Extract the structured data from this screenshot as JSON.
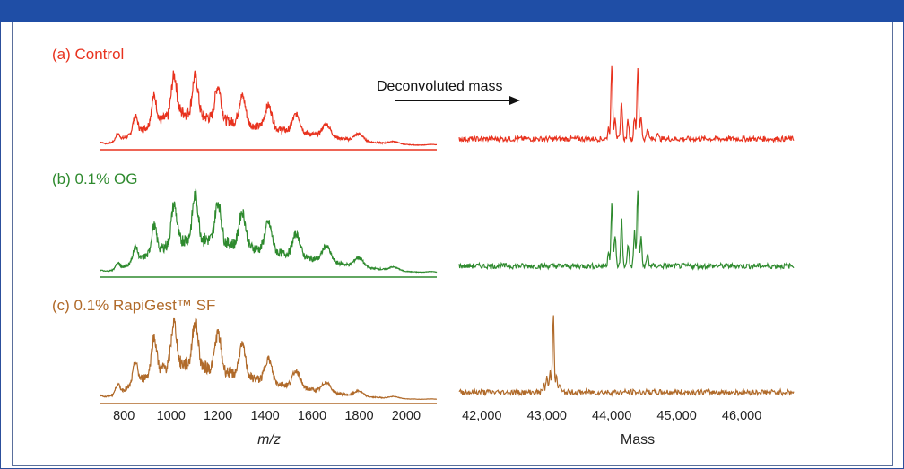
{
  "chart_data": {
    "type": "line",
    "annotation": "Deconvoluted mass",
    "left_axis": {
      "xlabel": "m/z",
      "xlim": [
        700,
        2130
      ],
      "ticks": [
        "800",
        "1000",
        "1200",
        "1400",
        "1600",
        "1800",
        "2000"
      ],
      "tick_values": [
        800,
        1000,
        1200,
        1400,
        1600,
        1800,
        2000
      ]
    },
    "right_axis": {
      "xlabel": "Mass",
      "xlim": [
        41650,
        46800
      ],
      "ticks": [
        "42,000",
        "43,000",
        "44,000",
        "45,000",
        "46,000"
      ],
      "tick_values": [
        42000,
        43000,
        44000,
        45000,
        46000
      ]
    },
    "panels": [
      {
        "label": "(a)  Control",
        "color": "#e8321e",
        "mz_envelope": {
          "x": [
            700,
            760,
            820,
            880,
            940,
            1000,
            1040,
            1080,
            1150,
            1250,
            1350,
            1450,
            1550,
            1650,
            1750,
            1850,
            1950,
            2050,
            2130
          ],
          "y": [
            0.05,
            0.12,
            0.3,
            0.5,
            0.7,
            0.9,
            1.0,
            0.95,
            0.85,
            0.72,
            0.6,
            0.5,
            0.4,
            0.3,
            0.2,
            0.12,
            0.06,
            0.03,
            0.02
          ]
        },
        "mass_peaks": {
          "x": [
            43950,
            44000,
            44050,
            44150,
            44250,
            44350,
            44400,
            44450,
            44550,
            44700
          ],
          "y": [
            0.15,
            1.0,
            0.3,
            0.5,
            0.25,
            0.3,
            0.95,
            0.3,
            0.15,
            0.1
          ]
        }
      },
      {
        "label": "(b)  0.1% OG",
        "color": "#2e8a2e",
        "mz_envelope": {
          "x": [
            700,
            760,
            820,
            880,
            940,
            1000,
            1050,
            1100,
            1150,
            1250,
            1350,
            1450,
            1550,
            1650,
            1750,
            1850,
            1950,
            2050,
            2130
          ],
          "y": [
            0.04,
            0.1,
            0.25,
            0.45,
            0.65,
            0.85,
            0.95,
            1.0,
            0.96,
            0.85,
            0.72,
            0.6,
            0.48,
            0.36,
            0.25,
            0.15,
            0.08,
            0.04,
            0.02
          ]
        },
        "mass_peaks": {
          "x": [
            43950,
            44000,
            44050,
            44150,
            44250,
            44350,
            44400,
            44450,
            44550
          ],
          "y": [
            0.2,
            0.8,
            0.4,
            0.6,
            0.3,
            0.45,
            1.0,
            0.35,
            0.15
          ]
        }
      },
      {
        "label": "(c)  0.1% RapiGest™  SF",
        "color": "#b06a2a",
        "mz_envelope": {
          "x": [
            700,
            760,
            820,
            880,
            940,
            1000,
            1050,
            1100,
            1150,
            1250,
            1350,
            1450,
            1550,
            1650,
            1750,
            1850,
            1950,
            2050,
            2130
          ],
          "y": [
            0.05,
            0.15,
            0.35,
            0.6,
            0.82,
            0.95,
            1.0,
            0.98,
            0.9,
            0.75,
            0.6,
            0.46,
            0.34,
            0.23,
            0.14,
            0.08,
            0.04,
            0.02,
            0.01
          ]
        },
        "mass_peaks": {
          "x": [
            42950,
            43000,
            43050,
            43100,
            43150,
            43200
          ],
          "y": [
            0.1,
            0.2,
            0.25,
            1.0,
            0.2,
            0.1
          ]
        }
      }
    ]
  }
}
